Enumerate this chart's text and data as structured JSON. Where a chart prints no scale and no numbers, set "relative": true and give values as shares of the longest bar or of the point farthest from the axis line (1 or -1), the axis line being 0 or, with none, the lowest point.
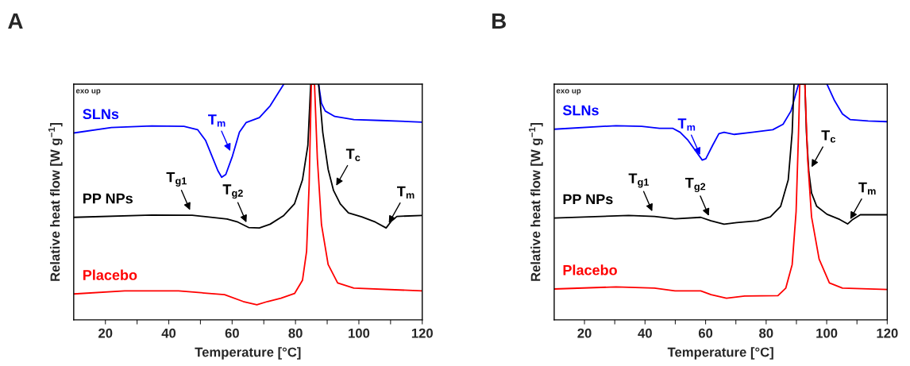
{
  "chart_data": [
    {
      "type": "line",
      "title": "A",
      "xlabel": "Temperature [°C]",
      "ylabel": "Relative heat flow [W g$^{−1}$]",
      "relative": true,
      "tick_labels": "x",
      "xlim": [
        10,
        120
      ],
      "xticks": [
        20,
        {
          "value": 30,
          "label": null
        },
        40,
        {
          "value": 50,
          "label": null
        },
        60,
        {
          "value": 70,
          "label": null
        },
        80,
        {
          "value": 90,
          "label": null
        },
        100,
        {
          "value": 110,
          "label": null
        },
        120
      ],
      "series": [
        {
          "name": "SLNs",
          "color": "#0000ff",
          "x": [
            10,
            21.9,
            34.6,
            44.8,
            49.1,
            51.6,
            53.3,
            55.5,
            56.7,
            58.0,
            60.1,
            62.3,
            64.4,
            68.6,
            72.0,
            74.6,
            76.3,
            80,
            87.3,
            88.2,
            89.4,
            92.4,
            98.4,
            106.9,
            120
          ],
          "values": [
            0.793,
            0.816,
            0.823,
            0.821,
            0.807,
            0.762,
            0.706,
            0.633,
            0.605,
            0.617,
            0.695,
            0.796,
            0.837,
            0.858,
            0.908,
            0.964,
            1.0,
            null,
            1.0,
            0.919,
            0.886,
            0.863,
            0.85,
            0.846,
            0.839
          ]
        },
        {
          "name": "PP NPs",
          "color": "#000000",
          "x": [
            10,
            34.6,
            47.4,
            58.4,
            61.8,
            65.2,
            68.6,
            72.0,
            76.3,
            79.7,
            82.2,
            83.9,
            84.8,
            86.0,
            87.3,
            88.6,
            90.3,
            92.0,
            94.1,
            96.7,
            100.9,
            105.2,
            108.6,
            110.3,
            112.0,
            120
          ],
          "values": [
            0.435,
            0.445,
            0.444,
            0.428,
            0.415,
            0.392,
            0.39,
            0.406,
            0.443,
            0.493,
            0.594,
            0.74,
            1.0,
            null,
            1.0,
            0.796,
            0.639,
            0.549,
            0.493,
            0.454,
            0.437,
            0.415,
            0.39,
            0.42,
            0.439,
            0.443
          ]
        },
        {
          "name": "Placebo",
          "color": "#ff0000",
          "x": [
            10,
            26.1,
            43.1,
            57.6,
            63.5,
            67.8,
            71.2,
            75.4,
            79.7,
            82.2,
            83.5,
            84.3,
            85.0,
            86.0,
            86.9,
            88.2,
            90.3,
            93.3,
            98.4,
            120
          ],
          "values": [
            0.11,
            0.123,
            0.123,
            0.107,
            0.078,
            0.064,
            0.078,
            0.092,
            0.112,
            0.168,
            0.291,
            0.572,
            1.0,
            1.0,
            0.684,
            0.404,
            0.235,
            0.157,
            0.135,
            0.123
          ]
        }
      ],
      "annotations": [
        "exo up",
        {
          "text": "T$_{m}$",
          "x": 60.1,
          "y": 0.695
        },
        {
          "text": "T$_{g1}$",
          "x": 47.4,
          "y": 0.444
        },
        {
          "text": "T$_{g2}$",
          "x": 65.2,
          "y": 0.392
        },
        {
          "text": "T$_{c}$",
          "x": 92.0,
          "y": 0.549
        },
        {
          "text": "T$_{m}$",
          "x": 108.6,
          "y": 0.39
        }
      ]
    },
    {
      "type": "line",
      "title": "B",
      "xlabel": "Temperature [°C]",
      "ylabel": "Relative heat flow [W g$^{−1}$]",
      "relative": true,
      "tick_labels": "x",
      "xlim": [
        10,
        120
      ],
      "xticks": [
        20,
        {
          "value": 30,
          "label": null
        },
        40,
        {
          "value": 50,
          "label": null
        },
        60,
        {
          "value": 70,
          "label": null
        },
        80,
        {
          "value": 90,
          "label": null
        },
        100,
        {
          "value": 110,
          "label": null
        },
        120
      ],
      "series": [
        {
          "name": "SLNs",
          "color": "#0000ff",
          "x": [
            10,
            30.4,
            38.9,
            44.8,
            49.1,
            51.6,
            54.2,
            56.7,
            58.9,
            60.1,
            62.3,
            64.4,
            66.1,
            69.5,
            75.4,
            82.2,
            85.6,
            88.2,
            89.9,
            90.7,
            95,
            100.1,
            102.6,
            105.2,
            107.7,
            113.7,
            120
          ],
          "values": [
            0.809,
            0.824,
            0.821,
            0.813,
            0.813,
            0.796,
            0.762,
            0.717,
            0.678,
            0.684,
            0.74,
            0.79,
            0.796,
            0.787,
            0.796,
            0.807,
            0.83,
            0.886,
            0.964,
            1.0,
            null,
            1.0,
            0.93,
            0.874,
            0.85,
            0.844,
            0.841
          ]
        },
        {
          "name": "PP NPs",
          "color": "#000000",
          "x": [
            10,
            34.6,
            43.1,
            49.9,
            58.4,
            61.8,
            66.1,
            70.3,
            77.1,
            81.4,
            84.8,
            87.3,
            88.6,
            89.2,
            91,
            92.8,
            93.3,
            94.1,
            95.0,
            96.7,
            100.1,
            104.3,
            106.9,
            108.6,
            111.1,
            120
          ],
          "values": [
            0.432,
            0.443,
            0.439,
            0.429,
            0.435,
            0.42,
            0.406,
            0.413,
            0.42,
            0.437,
            0.482,
            0.594,
            0.796,
            1.0,
            null,
            1.0,
            0.796,
            0.628,
            0.538,
            0.482,
            0.448,
            0.426,
            0.407,
            0.426,
            0.446,
            0.446
          ]
        },
        {
          "name": "Placebo",
          "color": "#ff0000",
          "x": [
            10,
            30.4,
            43.1,
            49.9,
            58.4,
            61.8,
            66.9,
            72.9,
            83.9,
            86.5,
            88.6,
            89.9,
            90.7,
            91.1,
            92.8,
            93.7,
            95.0,
            97.5,
            100.9,
            105.2,
            120
          ],
          "values": [
            0.131,
            0.14,
            0.135,
            0.123,
            0.123,
            0.107,
            0.092,
            0.101,
            0.103,
            0.135,
            0.235,
            0.46,
            0.796,
            1.0,
            1.0,
            0.684,
            0.437,
            0.258,
            0.157,
            0.135,
            0.129
          ]
        }
      ],
      "annotations": [
        "exo up",
        {
          "text": "T$_{m}$",
          "x": 58.9,
          "y": 0.678
        },
        {
          "text": "T$_{g1}$",
          "x": 43.1,
          "y": 0.439
        },
        {
          "text": "T$_{g2}$",
          "x": 61.8,
          "y": 0.42
        },
        {
          "text": "T$_{c}$",
          "x": 94.1,
          "y": 0.628
        },
        {
          "text": "T$_{m}$",
          "x": 106.9,
          "y": 0.407
        }
      ]
    }
  ]
}
